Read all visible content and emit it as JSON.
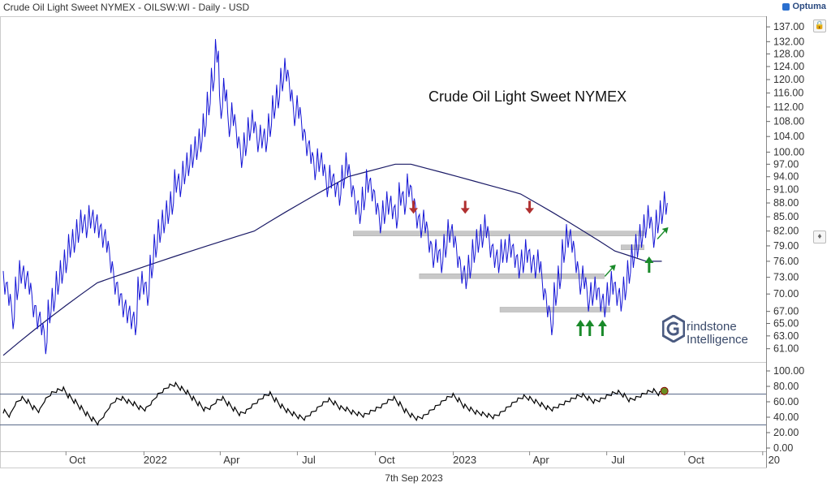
{
  "header": {
    "title": "Crude Oil Light Sweet NYMEX - OILSW:WI - Daily - USD",
    "logo_text": "Optuma",
    "date_label": "7th Sep 2023"
  },
  "brand": {
    "line1": "rindstone",
    "line2": "Intelligence"
  },
  "colors": {
    "price": "#1515d6",
    "ma": "#1a1a66",
    "zone": "#c8c8c8",
    "red_arrow": "#b03030",
    "green_arrow": "#1a8a2a",
    "rsi": "#000000",
    "rsi_dot": "#6b8e23"
  },
  "chart_data": [
    {
      "type": "line",
      "title": "Crude Oil Light Sweet NYMEX",
      "x_ticks": [
        "Oct",
        "2022",
        "Apr",
        "Jul",
        "Oct",
        "2023",
        "Apr",
        "Jul",
        "Oct",
        "20"
      ],
      "y_ticks": [
        "137.00",
        "132.00",
        "128.00",
        "124.00",
        "120.00",
        "116.00",
        "112.00",
        "108.00",
        "104.00",
        "100.00",
        "97.00",
        "94.00",
        "91.00",
        "88.00",
        "85.00",
        "82.00",
        "79.00",
        "76.00",
        "73.00",
        "70.00",
        "67.00",
        "65.00",
        "63.00",
        "61.00"
      ],
      "ylim": [
        59,
        139
      ],
      "log_scale": true,
      "series": [
        {
          "values": [
            72,
            70,
            66,
            71,
            74,
            73,
            72,
            68,
            66,
            65,
            62,
            67,
            69,
            72,
            74,
            76,
            79,
            80,
            82,
            84,
            83,
            85,
            84,
            83,
            81,
            80,
            76,
            72,
            70,
            68,
            67,
            66,
            65,
            71,
            72,
            70,
            75,
            79,
            82,
            84,
            86,
            88,
            93,
            92,
            95,
            97,
            99,
            101,
            103,
            107,
            113,
            120,
            129,
            112,
            117,
            107,
            110,
            104,
            99,
            102,
            106,
            108,
            103,
            104,
            103,
            107,
            112,
            115,
            120,
            123,
            117,
            110,
            112,
            106,
            102,
            100,
            96,
            98,
            97,
            92,
            94,
            92,
            90,
            94,
            97,
            92,
            88,
            86,
            89,
            93,
            91,
            88,
            84,
            86,
            88,
            87,
            85,
            90,
            88,
            92,
            89,
            85,
            83,
            84,
            80,
            77,
            78,
            76,
            79,
            82,
            81,
            77,
            74,
            73,
            75,
            78,
            80,
            81,
            83,
            79,
            77,
            76,
            78,
            78,
            79,
            77,
            75,
            76,
            78,
            76,
            75,
            76,
            71,
            68,
            65,
            70,
            73,
            78,
            81,
            80,
            76,
            72,
            73,
            69,
            70,
            71,
            69,
            68,
            70,
            72,
            70,
            69,
            71,
            74,
            77,
            79,
            81,
            83,
            85,
            81,
            84,
            86,
            88
          ]
        },
        {
          "values": [
            60,
            62,
            64,
            66,
            68,
            70,
            72,
            73,
            74,
            75,
            76,
            77,
            78,
            79,
            80,
            81,
            82,
            84,
            86,
            88,
            90,
            92,
            94,
            95,
            96,
            97,
            97,
            96,
            95,
            94,
            93,
            92,
            91,
            90,
            88,
            86,
            84,
            82,
            80,
            78,
            77,
            76,
            76
          ]
        }
      ],
      "zones": [
        {
          "from": "2022-09-05",
          "to": "2023-08-14",
          "level": 81.5
        },
        {
          "from": "2022-11-22",
          "to": "2023-06-28",
          "level": 73.2
        },
        {
          "from": "2023-02-25",
          "to": "2023-07-05",
          "level": 67.3
        },
        {
          "from": "2023-07-18",
          "to": "2023-08-14",
          "level": 78.7
        }
      ],
      "arrows_down": [
        "2022-11-15",
        "2023-01-15",
        "2023-04-01"
      ],
      "arrows_up": [
        "2023-05-31",
        "2023-06-11",
        "2023-06-26",
        "2023-07-04",
        "2023-08-20",
        "2023-09-04"
      ]
    },
    {
      "type": "line",
      "y_ticks": [
        "100.00",
        "80.00",
        "60.00",
        "40.00",
        "20.00",
        "0.00"
      ],
      "ylim": [
        0,
        100
      ],
      "hlines": [
        70,
        30
      ],
      "values": [
        45,
        40,
        55,
        62,
        58,
        50,
        46,
        60,
        68,
        72,
        74,
        65,
        58,
        50,
        42,
        35,
        30,
        40,
        52,
        60,
        62,
        58,
        55,
        50,
        48,
        56,
        66,
        72,
        78,
        80,
        75,
        70,
        62,
        55,
        48,
        50,
        58,
        62,
        55,
        48,
        42,
        45,
        52,
        58,
        64,
        68,
        60,
        52,
        46,
        42,
        38,
        36,
        42,
        48,
        55,
        60,
        56,
        50,
        48,
        44,
        42,
        40,
        44,
        48,
        52,
        58,
        62,
        55,
        46,
        40,
        36,
        38,
        44,
        50,
        56,
        62,
        66,
        60,
        52,
        48,
        44,
        42,
        40,
        38,
        42,
        48,
        54,
        60,
        64,
        62,
        58,
        54,
        50,
        48,
        52,
        56,
        60,
        64,
        66,
        62,
        58,
        60,
        64,
        68,
        70,
        66,
        60,
        62,
        66,
        70,
        72,
        68,
        74
      ]
    }
  ]
}
